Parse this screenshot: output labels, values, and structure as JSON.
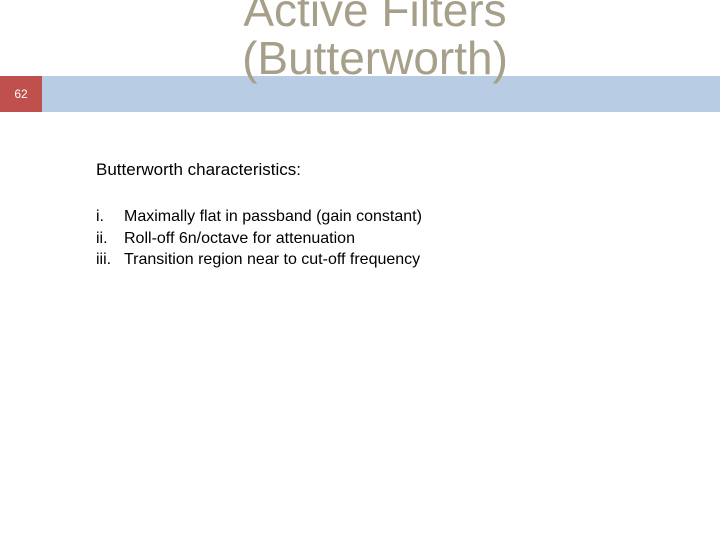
{
  "colors": {
    "header_band": "#b8cce4",
    "badge_bg": "#c0504d",
    "badge_text": "#ffffff",
    "title_text": "#a6a08a",
    "body_text": "#000000",
    "page_bg": "#ffffff"
  },
  "page_number": "62",
  "title_line1": "Active Filters",
  "title_line2": "(Butterworth)",
  "subheading": "Butterworth characteristics:",
  "items": [
    {
      "marker": "i.",
      "text": "Maximally flat in passband (gain constant)"
    },
    {
      "marker": "ii.",
      "text": "Roll-off 6n/octave for attenuation"
    },
    {
      "marker": "iii.",
      "text": "Transition region near to cut-off frequency"
    }
  ]
}
